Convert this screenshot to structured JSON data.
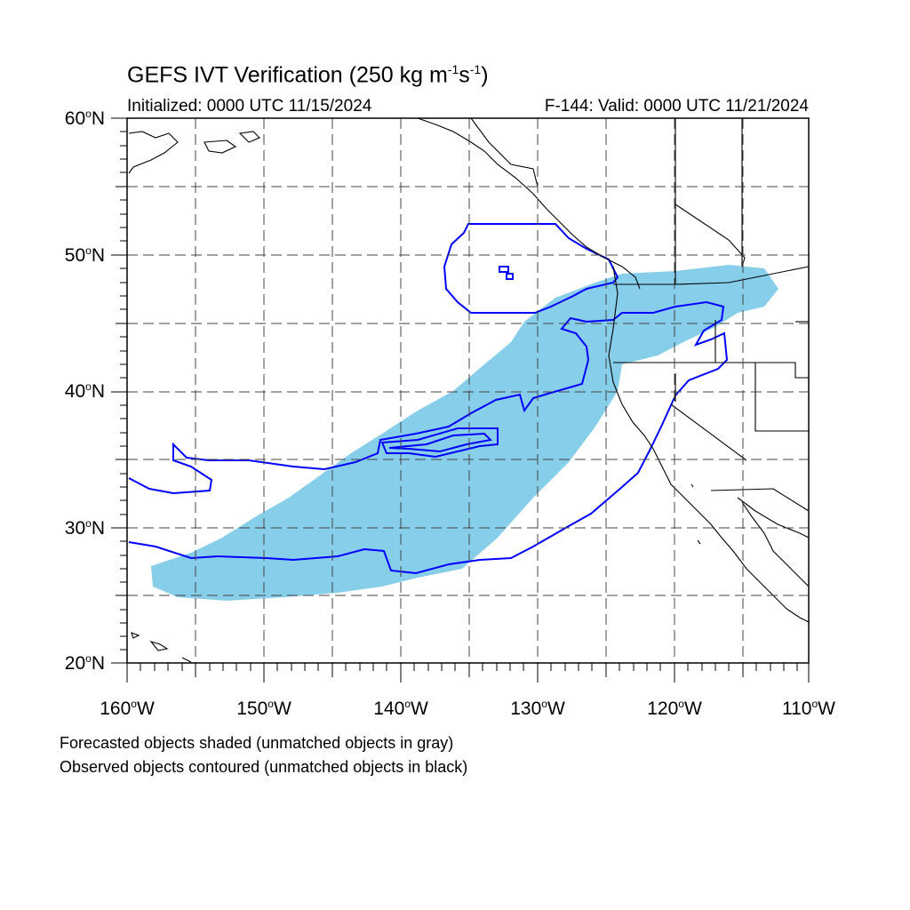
{
  "title": {
    "main": "GEFS IVT Verification (250 kg m",
    "exp1": "-1",
    "mid": "s",
    "exp2": "-1",
    "end": ")"
  },
  "initialized": "Initialized: 0000 UTC 11/15/2024",
  "valid": "F-144: Valid: 0000 UTC 11/21/2024",
  "lat_labels": [
    "60",
    "50",
    "40",
    "30",
    "20"
  ],
  "lat_suffix": "N",
  "lon_labels": [
    "160",
    "150",
    "140",
    "130",
    "120",
    "110"
  ],
  "lon_suffix": "W",
  "degree_symbol": "o",
  "notes": {
    "line1": "Forecasted objects shaded (unmatched objects in gray)",
    "line2": "Observed objects contoured (unmatched objects in black)"
  },
  "colors": {
    "forecast_fill": "#87ceeb",
    "observed_contour": "#0000ff",
    "coastline": "#000000",
    "grid": "#444444"
  }
}
